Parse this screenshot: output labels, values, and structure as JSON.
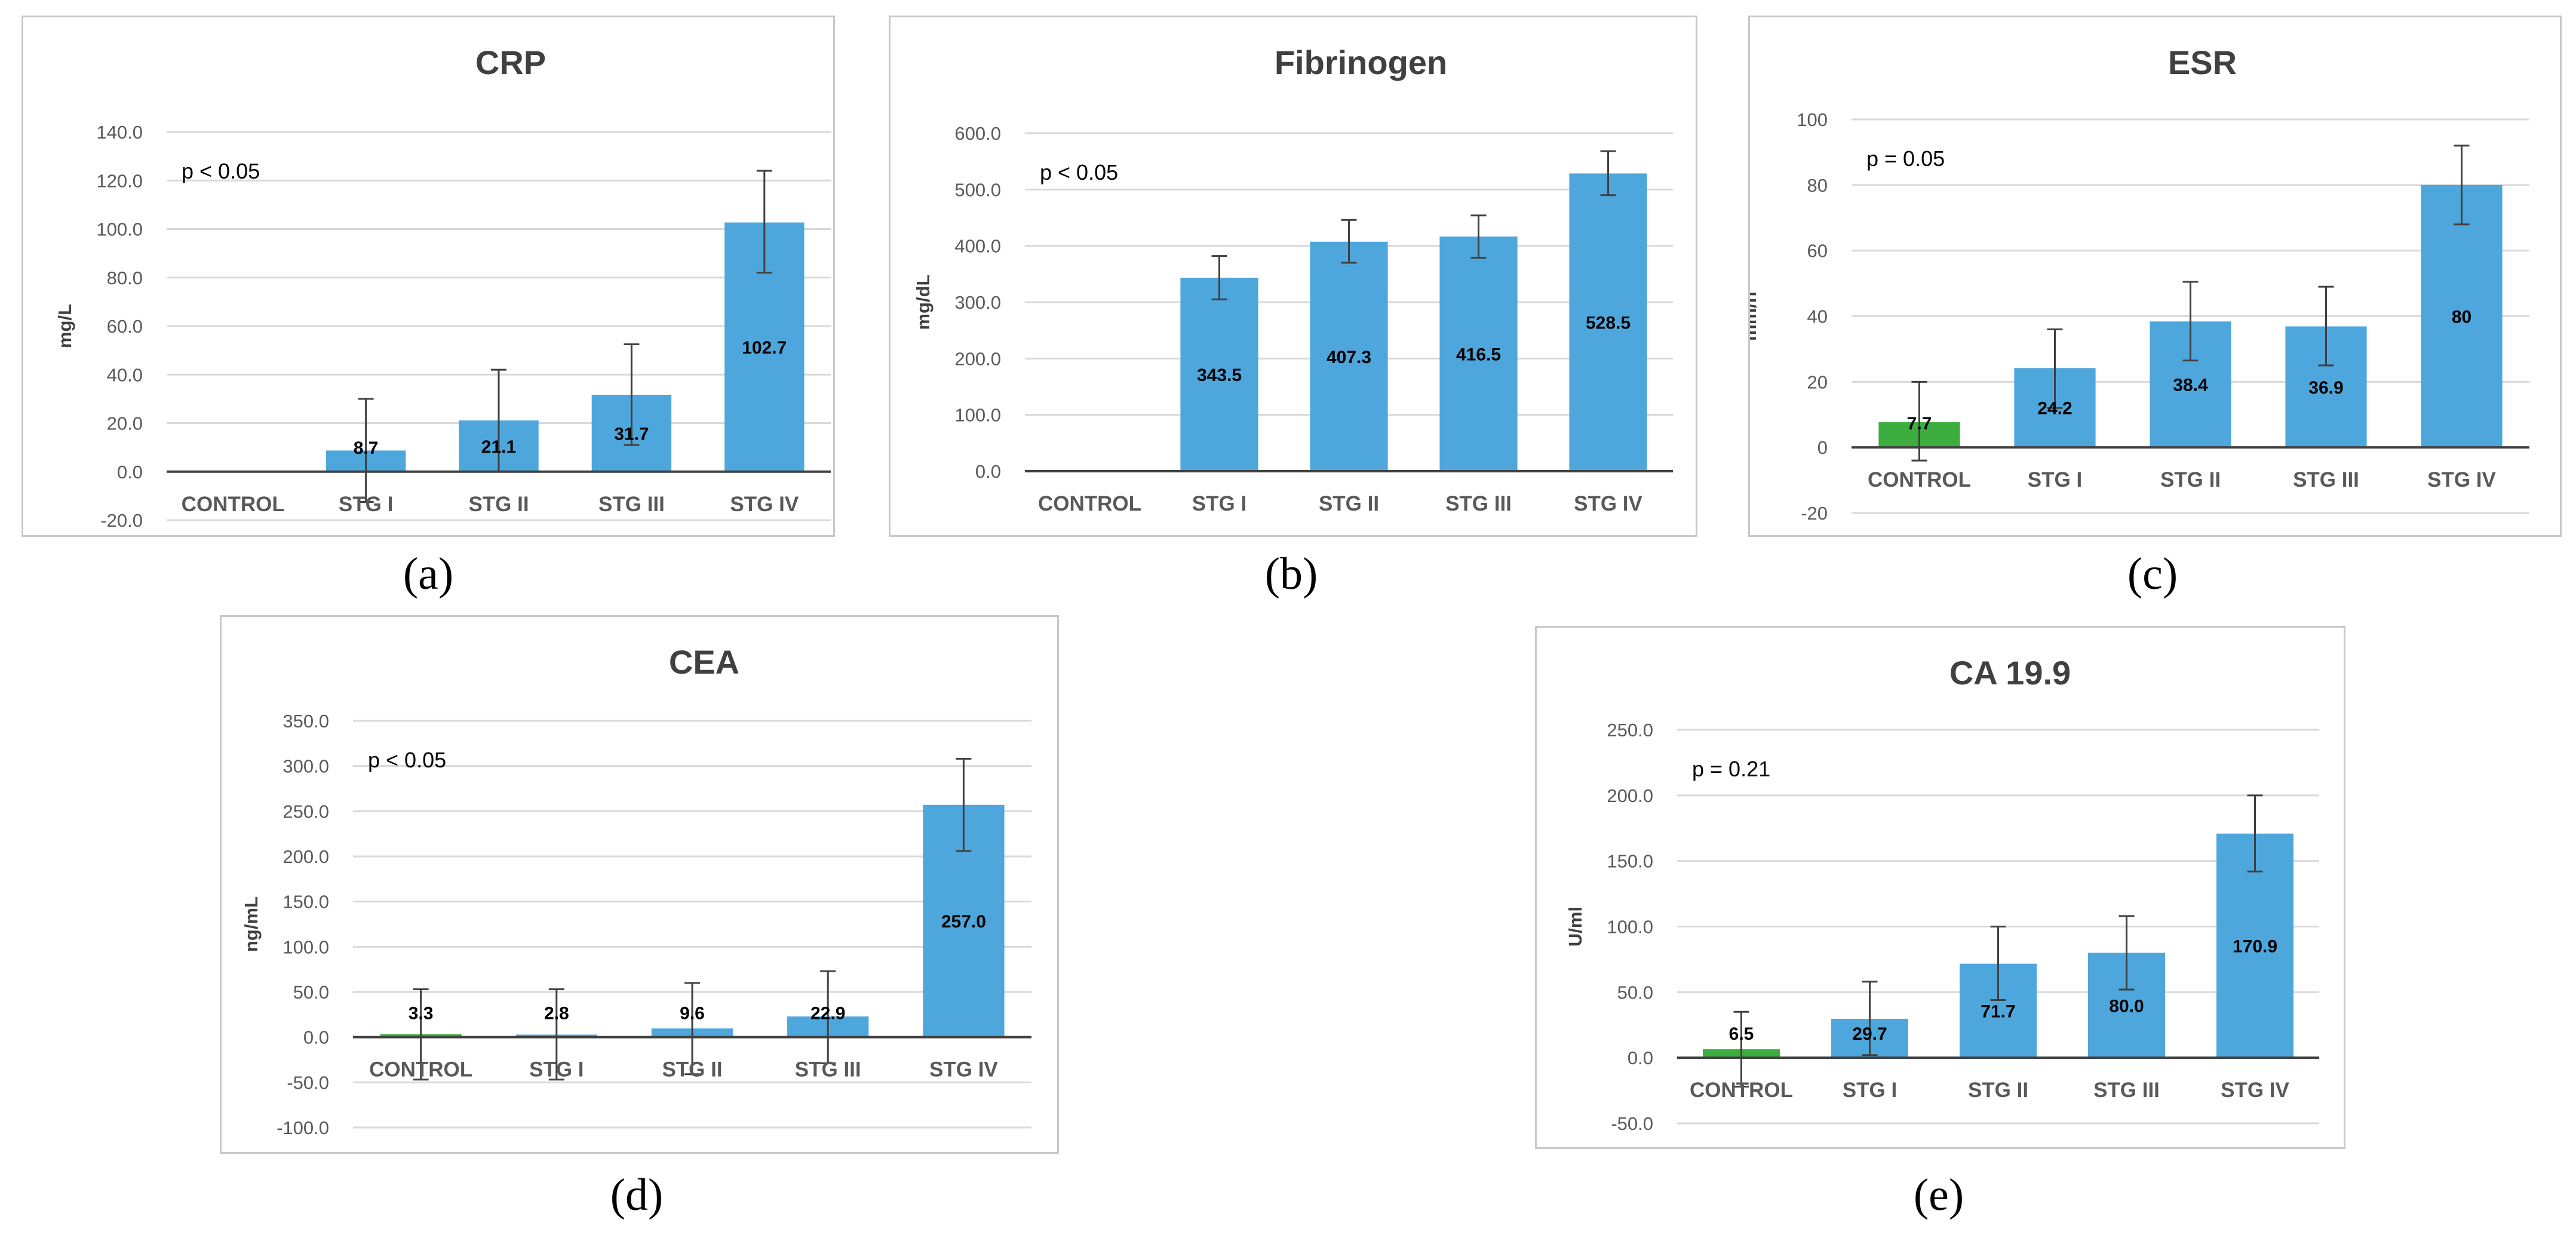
{
  "chart_data": [
    {
      "type": "bar",
      "panel_label": "(a)",
      "title": "CRP",
      "ylabel": "mg/L",
      "annotation": "p < 0.05",
      "categories": [
        "CONTROL",
        "STG I",
        "STG II",
        "STG III",
        "STG IV"
      ],
      "values": [
        0,
        8.7,
        21.1,
        31.7,
        102.7
      ],
      "value_labels": [
        "",
        "8.7",
        "21.1",
        "31.7",
        "102.7"
      ],
      "error_low": [
        null,
        -12.5,
        0,
        11,
        82
      ],
      "error_high": [
        null,
        30,
        42,
        52.5,
        124
      ],
      "ylim": [
        -20,
        140
      ],
      "yticks": [
        "-20.0",
        "0.0",
        "20.0",
        "40.0",
        "60.0",
        "80.0",
        "100.0",
        "120.0",
        "140.0"
      ],
      "ytick_values": [
        -20,
        0,
        20,
        40,
        60,
        80,
        100,
        120,
        140
      ],
      "colors": [
        "#4ea7dc",
        "#4ea7dc",
        "#4ea7dc",
        "#4ea7dc",
        "#4ea7dc"
      ],
      "grid": true
    },
    {
      "type": "bar",
      "panel_label": "(b)",
      "title": "Fibrinogen",
      "ylabel": "mg/dL",
      "annotation": "p < 0.05",
      "categories": [
        "CONTROL",
        "STG I",
        "STG II",
        "STG III",
        "STG IV"
      ],
      "values": [
        0,
        343.5,
        407.3,
        416.5,
        528.5
      ],
      "value_labels": [
        "",
        "343.5",
        "407.3",
        "416.5",
        "528.5"
      ],
      "error_low": [
        null,
        305,
        370,
        379,
        490
      ],
      "error_high": [
        null,
        382,
        446,
        454,
        568
      ],
      "ylim": [
        0,
        600
      ],
      "yticks": [
        "0.0",
        "100.0",
        "200.0",
        "300.0",
        "400.0",
        "500.0",
        "600.0"
      ],
      "ytick_values": [
        0,
        100,
        200,
        300,
        400,
        500,
        600
      ],
      "colors": [
        "#4ea7dc",
        "#4ea7dc",
        "#4ea7dc",
        "#4ea7dc",
        "#4ea7dc"
      ],
      "grid": true
    },
    {
      "type": "bar",
      "panel_label": "(c)",
      "title": "ESR",
      "ylabel": "mm/h",
      "annotation": "p = 0.05",
      "categories": [
        "CONTROL",
        "STG I",
        "STG II",
        "STG III",
        "STG IV"
      ],
      "values": [
        7.7,
        24.2,
        38.4,
        36.9,
        80
      ],
      "value_labels": [
        "7.7",
        "24.2",
        "38.4",
        "36.9",
        "80"
      ],
      "error_low": [
        -4,
        12,
        26.5,
        25,
        68
      ],
      "error_high": [
        20,
        36,
        50.5,
        49,
        92
      ],
      "ylim": [
        -20,
        100
      ],
      "yticks": [
        "-20",
        "0",
        "20",
        "40",
        "60",
        "80",
        "100"
      ],
      "ytick_values": [
        -20,
        0,
        20,
        40,
        60,
        80,
        100
      ],
      "colors": [
        "#3cae3e",
        "#4ea7dc",
        "#4ea7dc",
        "#4ea7dc",
        "#4ea7dc"
      ],
      "grid": true
    },
    {
      "type": "bar",
      "panel_label": "(d)",
      "title": "CEA",
      "ylabel": "ng/mL",
      "annotation": "p < 0.05",
      "categories": [
        "CONTROL",
        "STG I",
        "STG II",
        "STG III",
        "STG IV"
      ],
      "values": [
        3.3,
        2.8,
        9.6,
        22.9,
        257.0
      ],
      "value_labels": [
        "3.3",
        "2.8",
        "9.6",
        "22.9",
        "257.0"
      ],
      "error_low": [
        -47,
        -47,
        -41,
        -29,
        206
      ],
      "error_high": [
        53,
        53,
        60,
        73,
        308
      ],
      "ylim": [
        -100,
        350
      ],
      "yticks": [
        "-100.0",
        "-50.0",
        "0.0",
        "50.0",
        "100.0",
        "150.0",
        "200.0",
        "250.0",
        "300.0",
        "350.0"
      ],
      "ytick_values": [
        -100,
        -50,
        0,
        50,
        100,
        150,
        200,
        250,
        300,
        350
      ],
      "colors": [
        "#3cae3e",
        "#4ea7dc",
        "#4ea7dc",
        "#4ea7dc",
        "#4ea7dc"
      ],
      "grid": true
    },
    {
      "type": "bar",
      "panel_label": "(e)",
      "title": "CA 19.9",
      "ylabel": "U/ml",
      "annotation": "p = 0.21",
      "categories": [
        "CONTROL",
        "STG I",
        "STG II",
        "STG III",
        "STG IV"
      ],
      "values": [
        6.5,
        29.7,
        71.7,
        80.0,
        170.9
      ],
      "value_labels": [
        "6.5",
        "29.7",
        "71.7",
        "80.0",
        "170.9"
      ],
      "error_low": [
        -22,
        2,
        44,
        52,
        142
      ],
      "error_high": [
        35,
        58,
        100,
        108,
        200
      ],
      "ylim": [
        -50,
        250
      ],
      "yticks": [
        "-50.0",
        "0.0",
        "50.0",
        "100.0",
        "150.0",
        "200.0",
        "250.0"
      ],
      "ytick_values": [
        -50,
        0,
        50,
        100,
        150,
        200,
        250
      ],
      "colors": [
        "#3cae3e",
        "#4ea7dc",
        "#4ea7dc",
        "#4ea7dc",
        "#4ea7dc"
      ],
      "grid": true
    }
  ]
}
